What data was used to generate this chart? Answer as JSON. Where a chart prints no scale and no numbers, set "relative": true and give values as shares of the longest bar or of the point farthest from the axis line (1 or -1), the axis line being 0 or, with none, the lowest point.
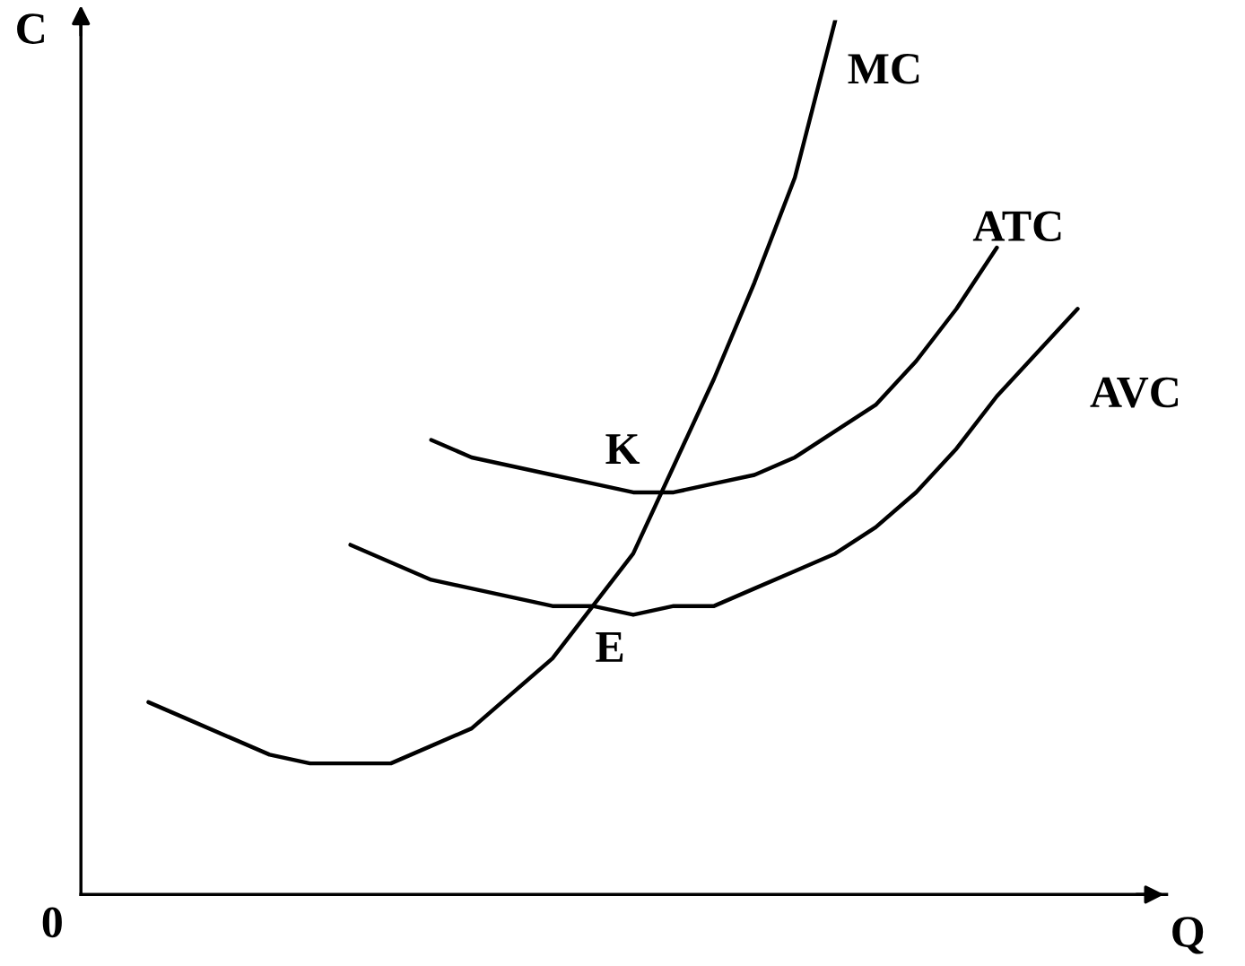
{
  "chart_data": {
    "type": "line",
    "relative": true,
    "xlabel": "Q",
    "ylabel": "C",
    "legend": false,
    "marker": "none",
    "line_style": "solid",
    "categories": [
      null,
      null,
      null,
      null,
      null,
      null,
      null,
      null,
      null,
      null,
      null,
      null,
      null,
      null,
      null,
      null,
      null,
      null,
      null,
      null,
      null,
      null,
      null,
      null,
      null
    ],
    "series": [
      {
        "name": "MC",
        "color": "#000000",
        "values": [
          0.22,
          0.2,
          0.18,
          0.16,
          0.15,
          0.15,
          0.15,
          0.17,
          0.19,
          0.23,
          0.27,
          0.33,
          0.39,
          0.49,
          0.59,
          0.7,
          0.82,
          1.0,
          null,
          null,
          null,
          null,
          null,
          null,
          null
        ]
      },
      {
        "name": "ATC",
        "color": "#000000",
        "values": [
          null,
          null,
          null,
          null,
          null,
          null,
          null,
          0.52,
          0.5,
          0.49,
          0.48,
          0.47,
          0.46,
          0.46,
          0.47,
          0.48,
          0.5,
          0.53,
          0.56,
          0.61,
          0.67,
          0.74,
          null,
          null,
          null
        ]
      },
      {
        "name": "AVC",
        "color": "#000000",
        "values": [
          null,
          null,
          null,
          null,
          null,
          0.4,
          0.38,
          0.36,
          0.35,
          0.34,
          0.33,
          0.33,
          0.32,
          0.33,
          0.33,
          0.35,
          0.37,
          0.39,
          0.42,
          0.46,
          0.51,
          0.57,
          0.62,
          0.67,
          null
        ]
      }
    ],
    "annotations": [
      "K",
      "E",
      "0"
    ]
  }
}
